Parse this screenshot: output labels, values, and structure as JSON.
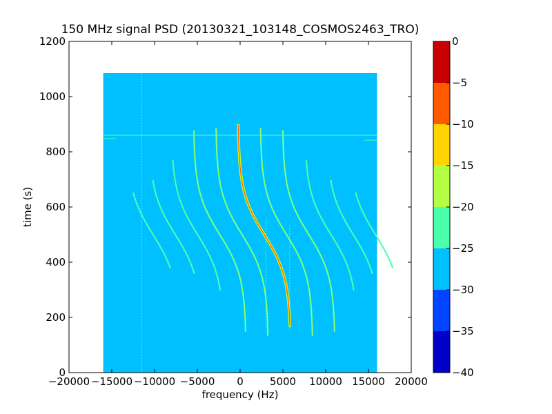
{
  "chart_data": {
    "type": "heatmap",
    "title": "150 MHz signal PSD (20130321_103148_COSMOS2463_TRO)",
    "xlabel": "frequency (Hz)",
    "ylabel": "time (s)",
    "xlim": [
      -20000,
      20000
    ],
    "ylim": [
      0,
      1200
    ],
    "xticks": [
      -20000,
      -15000,
      -10000,
      -5000,
      0,
      5000,
      10000,
      15000,
      20000
    ],
    "yticks": [
      0,
      200,
      400,
      600,
      800,
      1000,
      1200
    ],
    "data_extent": {
      "x": [
        -16000,
        16000
      ],
      "y": [
        0,
        1085
      ]
    },
    "background_level": -27.5,
    "colorbar": {
      "min": -40,
      "max": 0,
      "ticks": [
        0,
        -5,
        -10,
        -15,
        -20,
        -25,
        -30,
        -35,
        -40
      ],
      "bins": [
        {
          "range": [
            -40,
            -35
          ],
          "color": "#0000c8"
        },
        {
          "range": [
            -35,
            -30
          ],
          "color": "#0044ff"
        },
        {
          "range": [
            -30,
            -25
          ],
          "color": "#00c0ff"
        },
        {
          "range": [
            -25,
            -20
          ],
          "color": "#4cffac"
        },
        {
          "range": [
            -20,
            -15
          ],
          "color": "#b4ff44"
        },
        {
          "range": [
            -15,
            -10
          ],
          "color": "#ffd400"
        },
        {
          "range": [
            -10,
            -5
          ],
          "color": "#ff5a00"
        },
        {
          "range": [
            -5,
            0
          ],
          "color": "#c80000"
        }
      ]
    },
    "features": {
      "doppler_curves": [
        {
          "offset": 0,
          "tStart": 170,
          "tEnd": 900,
          "level": -5
        },
        {
          "offset": 2600,
          "tStart": 135,
          "tEnd": 885,
          "level": -20
        },
        {
          "offset": -2600,
          "tStart": 135,
          "tEnd": 885,
          "level": -20
        },
        {
          "offset": 5200,
          "tStart": 150,
          "tEnd": 880,
          "level": -22
        },
        {
          "offset": -5200,
          "tStart": 150,
          "tEnd": 880,
          "level": -22
        },
        {
          "offset": 7800,
          "tStart": 300,
          "tEnd": 770,
          "level": -24
        },
        {
          "offset": -7800,
          "tStart": 300,
          "tEnd": 770,
          "level": -24
        },
        {
          "offset": 10400,
          "tStart": 360,
          "tEnd": 700,
          "level": -24
        },
        {
          "offset": -10400,
          "tStart": 360,
          "tEnd": 700,
          "level": -24
        },
        {
          "offset": 13000,
          "tStart": 380,
          "tEnd": 650,
          "level": -24
        },
        {
          "offset": -13000,
          "tStart": 380,
          "tEnd": 650,
          "level": -24
        }
      ],
      "vertical_lines": [
        {
          "x": -11500,
          "y": [
            0,
            1085
          ],
          "level": -24
        },
        {
          "x": 3000,
          "y": [
            140,
            560
          ],
          "level": -24
        },
        {
          "x": 5800,
          "y": [
            150,
            540
          ],
          "level": -24
        }
      ],
      "horizontal_lines": [
        {
          "y": 860,
          "x": [
            -16000,
            16000
          ],
          "level": -24
        },
        {
          "y": 848,
          "x": [
            -16000,
            -14500
          ],
          "level": -24
        },
        {
          "y": 842,
          "x": [
            14500,
            16000
          ],
          "level": -24
        }
      ]
    }
  }
}
